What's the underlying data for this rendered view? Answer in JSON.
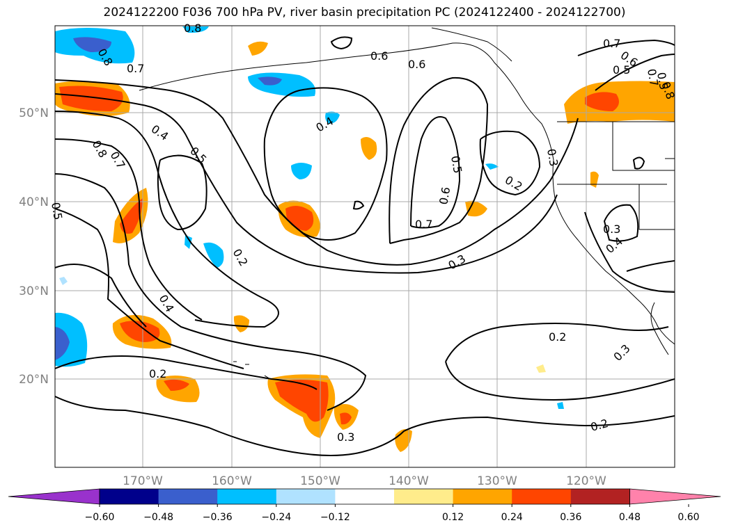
{
  "title": "2024122200 F036 700 hPa PV, river basin precipitation PC (2024122400 - 2024122700)",
  "map": {
    "lat_ticks": [
      "50°N",
      "40°N",
      "30°N",
      "20°N"
    ],
    "lon_ticks": [
      "170°W",
      "160°W",
      "150°W",
      "140°W",
      "130°W",
      "120°W"
    ],
    "contour_labels": [
      "0.8",
      "0.7",
      "0.7",
      "0.6",
      "0.5",
      "0.4",
      "0.5",
      "0.8",
      "0.7",
      "0.4",
      "0.5",
      "0.6",
      "0.2",
      "0.7",
      "0.6",
      "0.5",
      "0.3",
      "0.2",
      "0.5",
      "0.3",
      "0.4",
      "0.3",
      "0.4",
      "0.2",
      "0.2",
      "0.3",
      "0.3",
      "0.2",
      "0.6",
      "0.8",
      "0.7",
      "0.8"
    ]
  },
  "colorbar": {
    "ticks": [
      "−0.60",
      "−0.48",
      "−0.36",
      "−0.24",
      "−0.12",
      "0.12",
      "0.24",
      "0.36",
      "0.48",
      "0.60"
    ],
    "colors": [
      "#9932cc",
      "#00008b",
      "#3a5fcd",
      "#00bfff",
      "#b0e2ff",
      "#ffffff",
      "#ffec8b",
      "#ffa500",
      "#ff4500",
      "#b22222",
      "#ff82ab"
    ]
  }
}
